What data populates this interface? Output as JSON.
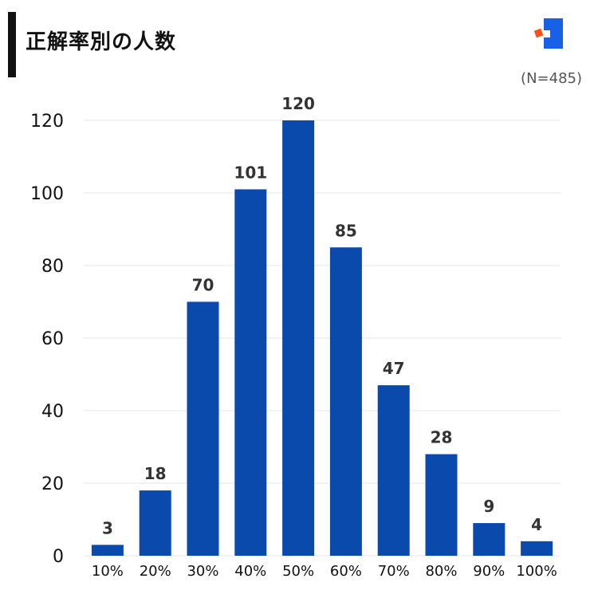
{
  "title": "正解率別の人数",
  "sample_label": "(N=485)",
  "colors": {
    "bar": "#0a4aad",
    "title_bar": "#111111",
    "logo_blue": "#1760e8",
    "logo_red": "#ff4e1a",
    "grid": "#e6e6e6"
  },
  "chart_data": {
    "type": "bar",
    "categories": [
      "10%",
      "20%",
      "30%",
      "40%",
      "50%",
      "60%",
      "70%",
      "80%",
      "90%",
      "100%"
    ],
    "values": [
      3,
      18,
      70,
      101,
      120,
      85,
      47,
      28,
      9,
      4
    ],
    "data_labels": [
      "3",
      "18",
      "70",
      "101",
      "120",
      "85",
      "47",
      "28",
      "9",
      "4"
    ],
    "yticks": [
      "0",
      "20",
      "40",
      "60",
      "80",
      "100",
      "120"
    ],
    "ylim": [
      0,
      120
    ],
    "grid": true,
    "legend": "none",
    "title": "正解率別の人数"
  }
}
